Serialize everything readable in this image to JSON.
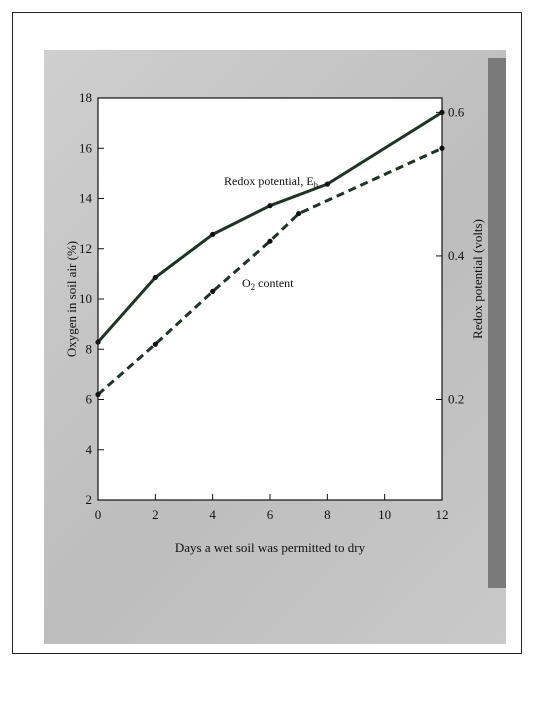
{
  "chart_data": {
    "type": "line",
    "xlabel": "Days a wet soil was permitted to dry",
    "ylabel_left": "Oxygen in soil air (%)",
    "ylabel_right": "Redox potential (volts)",
    "x_ticks": [
      "0",
      "2",
      "4",
      "6",
      "8",
      "10",
      "12"
    ],
    "y_left_ticks": [
      "2",
      "4",
      "6",
      "8",
      "10",
      "12",
      "14",
      "16",
      "18"
    ],
    "y_right_ticks": [
      "0.2",
      "0.4",
      "0.6"
    ],
    "xlim": [
      0,
      12
    ],
    "ylim_left": [
      2,
      18
    ],
    "ylim_right": [
      0.06,
      0.62
    ],
    "grid": false,
    "series": [
      {
        "name": "Redox potential, E",
        "name_subscript": "h",
        "axis": "right",
        "line_style": "solid",
        "x": [
          0,
          2,
          4,
          6,
          8,
          12
        ],
        "y": [
          0.28,
          0.37,
          0.43,
          0.47,
          0.5,
          0.6
        ]
      },
      {
        "name": "O",
        "name_subscript": "2",
        "name_suffix": " content",
        "axis": "left",
        "line_style": "dashed",
        "x": [
          0,
          2,
          4,
          6,
          7,
          12
        ],
        "y": [
          6.2,
          8.2,
          10.3,
          12.3,
          13.4,
          16.0
        ]
      }
    ]
  }
}
